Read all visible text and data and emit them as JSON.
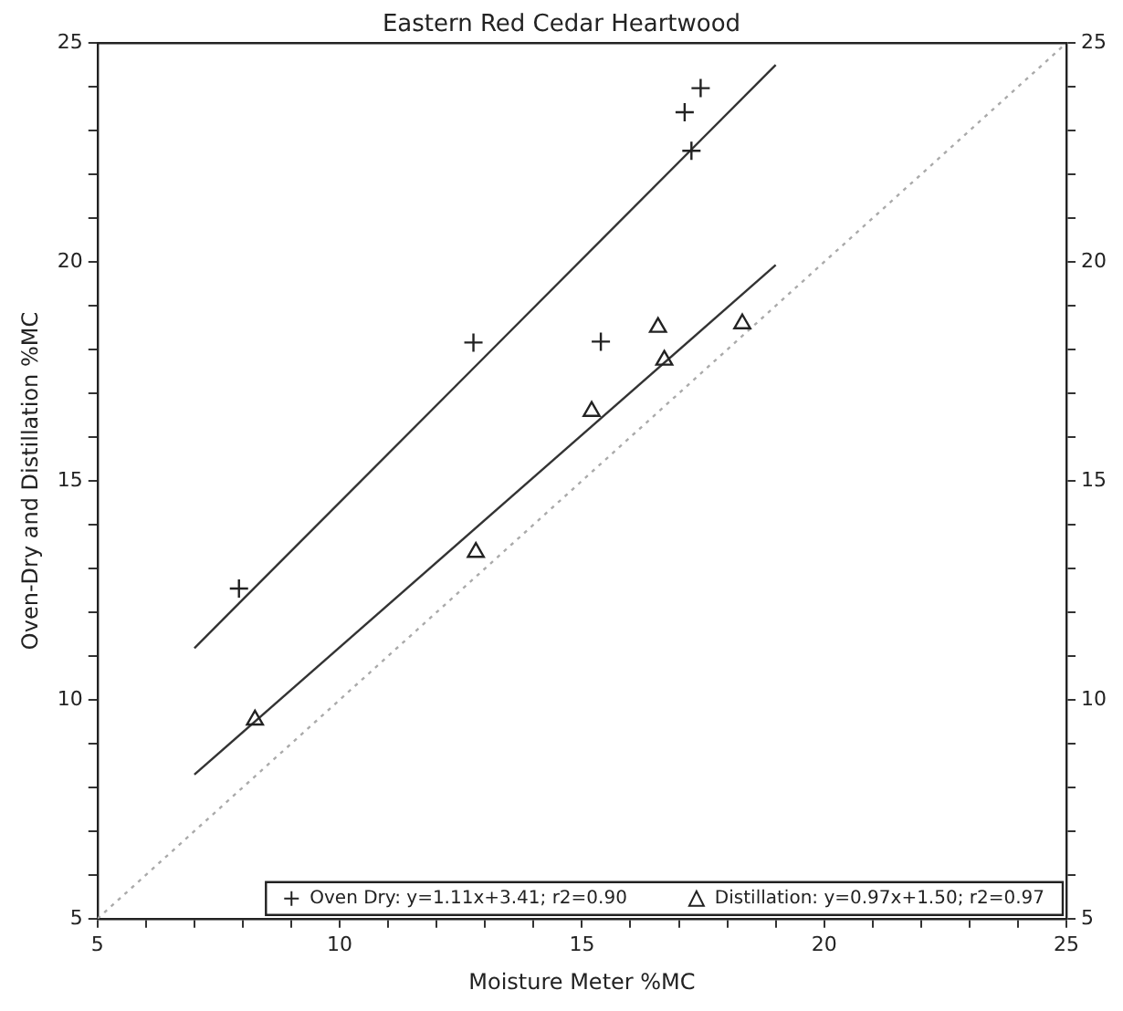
{
  "chart_data": {
    "type": "scatter",
    "title": "Eastern Red Cedar Heartwood",
    "xlabel": "Moisture Meter %MC",
    "ylabel": "Oven-Dry and Distillation %MC",
    "xlim": [
      5,
      25
    ],
    "ylim": [
      5,
      25
    ],
    "y2lim": [
      5,
      25
    ],
    "xticks": [
      5,
      {
        "value": 6,
        "label": null
      },
      {
        "value": 7,
        "label": null
      },
      {
        "value": 8,
        "label": null
      },
      {
        "value": 9,
        "label": null
      },
      10,
      {
        "value": 11,
        "label": null
      },
      {
        "value": 12,
        "label": null
      },
      {
        "value": 13,
        "label": null
      },
      {
        "value": 14,
        "label": null
      },
      15,
      {
        "value": 16,
        "label": null
      },
      {
        "value": 17,
        "label": null
      },
      {
        "value": 18,
        "label": null
      },
      {
        "value": 19,
        "label": null
      },
      20,
      {
        "value": 21,
        "label": null
      },
      {
        "value": 22,
        "label": null
      },
      {
        "value": 23,
        "label": null
      },
      {
        "value": 24,
        "label": null
      },
      25
    ],
    "yticks": [
      5,
      {
        "value": 6,
        "label": null
      },
      {
        "value": 7,
        "label": null
      },
      {
        "value": 8,
        "label": null
      },
      {
        "value": 9,
        "label": null
      },
      10,
      {
        "value": 11,
        "label": null
      },
      {
        "value": 12,
        "label": null
      },
      {
        "value": 13,
        "label": null
      },
      {
        "value": 14,
        "label": null
      },
      15,
      {
        "value": 16,
        "label": null
      },
      {
        "value": 17,
        "label": null
      },
      {
        "value": 18,
        "label": null
      },
      {
        "value": 19,
        "label": null
      },
      20,
      {
        "value": 21,
        "label": null
      },
      {
        "value": 22,
        "label": null
      },
      {
        "value": 23,
        "label": null
      },
      {
        "value": 24,
        "label": null
      },
      25
    ],
    "y2ticks": [
      5,
      {
        "value": 6,
        "label": null
      },
      {
        "value": 7,
        "label": null
      },
      {
        "value": 8,
        "label": null
      },
      {
        "value": 9,
        "label": null
      },
      10,
      {
        "value": 11,
        "label": null
      },
      {
        "value": 12,
        "label": null
      },
      {
        "value": 13,
        "label": null
      },
      {
        "value": 14,
        "label": null
      },
      15,
      {
        "value": 16,
        "label": null
      },
      {
        "value": 17,
        "label": null
      },
      {
        "value": 18,
        "label": null
      },
      {
        "value": 19,
        "label": null
      },
      20,
      {
        "value": 21,
        "label": null
      },
      {
        "value": 22,
        "label": null
      },
      {
        "value": 23,
        "label": null
      },
      {
        "value": 24,
        "label": null
      },
      25
    ],
    "grid": false,
    "legend": "bottom",
    "series": [
      {
        "name": "Oven Dry: y=1.11x+3.41; r2=0.90",
        "type": "scatter",
        "marker": "cross",
        "color": "#222222",
        "x": [
          7.92,
          12.76,
          15.39,
          17.12,
          17.26,
          17.45
        ],
        "values": [
          12.54,
          18.16,
          18.18,
          23.42,
          22.54,
          23.97
        ]
      },
      {
        "name": "Distillation: y=0.97x+1.50; r2=0.97",
        "type": "scatter",
        "marker": "triangle",
        "color": "#222222",
        "x": [
          8.25,
          12.81,
          15.2,
          16.57,
          16.7,
          18.31
        ],
        "values": [
          9.54,
          13.37,
          16.59,
          18.51,
          17.76,
          18.59
        ]
      },
      {
        "type": "line",
        "marker": "none",
        "line_style": "solid",
        "color": "#333333",
        "x": [
          7,
          19
        ],
        "values": [
          11.18,
          24.5
        ]
      },
      {
        "type": "line",
        "marker": "none",
        "line_style": "solid",
        "color": "#333333",
        "x": [
          7,
          19
        ],
        "values": [
          8.29,
          19.93
        ]
      },
      {
        "type": "line",
        "marker": "none",
        "line_style": "dotted",
        "color": "#aaaaaa",
        "x": [
          5,
          25
        ],
        "values": [
          5,
          25
        ]
      }
    ]
  }
}
